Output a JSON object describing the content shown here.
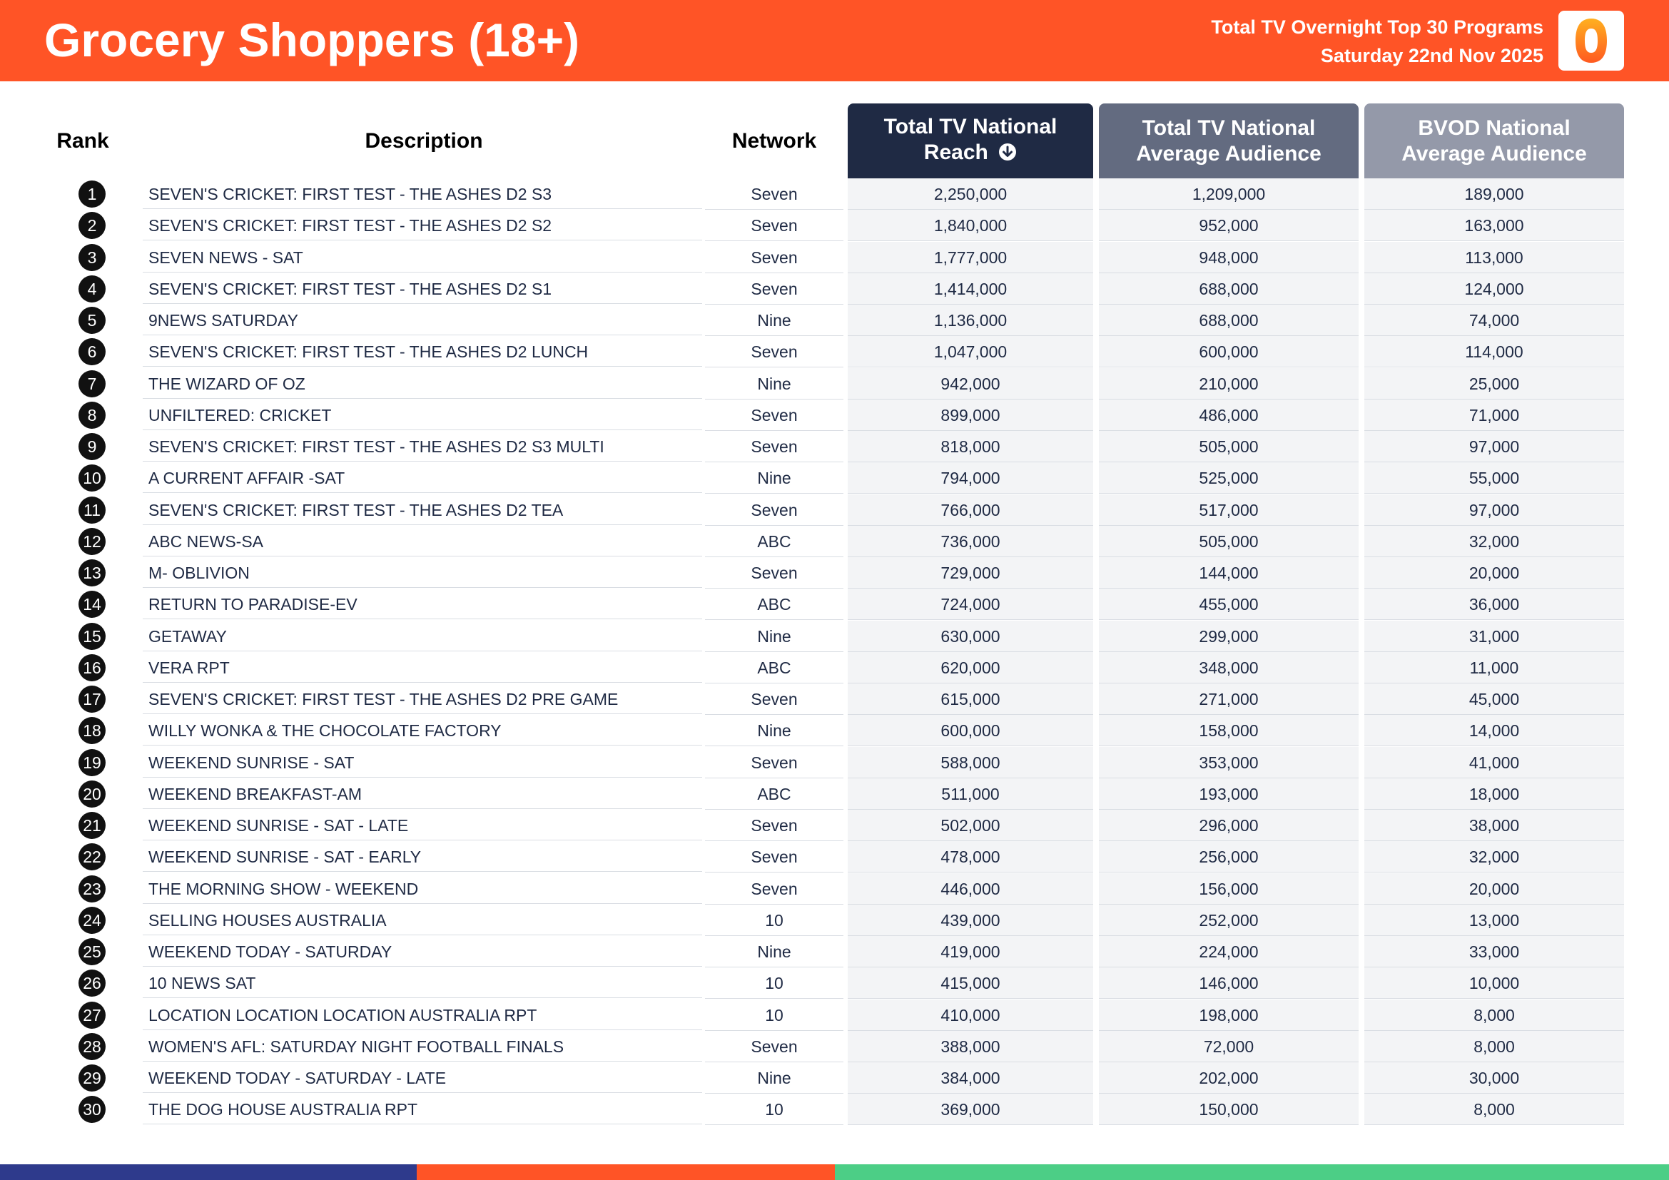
{
  "header": {
    "title": "Grocery Shoppers (18+)",
    "subtitle_line1": "Total TV Overnight Top 30 Programs",
    "subtitle_line2": "Saturday 22nd Nov 2025",
    "logo_icon": "oztam-logo-icon"
  },
  "columns": {
    "rank": "Rank",
    "description": "Description",
    "network": "Network",
    "reach_line1": "Total TV National",
    "reach_line2": "Reach",
    "avg_line1": "Total TV National",
    "avg_line2": "Average Audience",
    "bvod_line1": "BVOD National",
    "bvod_line2": "Average Audience"
  },
  "colors": {
    "header": "#ff5426",
    "reach_header": "#1f2a44",
    "avg_header": "#636b80",
    "bvod_header": "#9499a9",
    "footer": [
      "#2e3a8c",
      "#ff5426",
      "#4cce86"
    ]
  },
  "rows": [
    {
      "rank": "1",
      "description": "SEVEN'S CRICKET: FIRST TEST - THE ASHES D2 S3",
      "network": "Seven",
      "reach": "2,250,000",
      "avg": "1,209,000",
      "bvod": "189,000"
    },
    {
      "rank": "2",
      "description": "SEVEN'S CRICKET: FIRST TEST - THE ASHES D2 S2",
      "network": "Seven",
      "reach": "1,840,000",
      "avg": "952,000",
      "bvod": "163,000"
    },
    {
      "rank": "3",
      "description": "SEVEN NEWS - SAT",
      "network": "Seven",
      "reach": "1,777,000",
      "avg": "948,000",
      "bvod": "113,000"
    },
    {
      "rank": "4",
      "description": "SEVEN'S CRICKET: FIRST TEST - THE ASHES D2 S1",
      "network": "Seven",
      "reach": "1,414,000",
      "avg": "688,000",
      "bvod": "124,000"
    },
    {
      "rank": "5",
      "description": "9NEWS SATURDAY",
      "network": "Nine",
      "reach": "1,136,000",
      "avg": "688,000",
      "bvod": "74,000"
    },
    {
      "rank": "6",
      "description": "SEVEN'S CRICKET: FIRST TEST - THE ASHES D2 LUNCH",
      "network": "Seven",
      "reach": "1,047,000",
      "avg": "600,000",
      "bvod": "114,000"
    },
    {
      "rank": "7",
      "description": "THE WIZARD OF OZ",
      "network": "Nine",
      "reach": "942,000",
      "avg": "210,000",
      "bvod": "25,000"
    },
    {
      "rank": "8",
      "description": "UNFILTERED: CRICKET",
      "network": "Seven",
      "reach": "899,000",
      "avg": "486,000",
      "bvod": "71,000"
    },
    {
      "rank": "9",
      "description": "SEVEN'S CRICKET: FIRST TEST - THE ASHES D2 S3 MULTI",
      "network": "Seven",
      "reach": "818,000",
      "avg": "505,000",
      "bvod": "97,000"
    },
    {
      "rank": "10",
      "description": "A CURRENT AFFAIR -SAT",
      "network": "Nine",
      "reach": "794,000",
      "avg": "525,000",
      "bvod": "55,000"
    },
    {
      "rank": "11",
      "description": "SEVEN'S CRICKET: FIRST TEST - THE ASHES D2 TEA",
      "network": "Seven",
      "reach": "766,000",
      "avg": "517,000",
      "bvod": "97,000"
    },
    {
      "rank": "12",
      "description": "ABC NEWS-SA",
      "network": "ABC",
      "reach": "736,000",
      "avg": "505,000",
      "bvod": "32,000"
    },
    {
      "rank": "13",
      "description": "M- OBLIVION",
      "network": "Seven",
      "reach": "729,000",
      "avg": "144,000",
      "bvod": "20,000"
    },
    {
      "rank": "14",
      "description": "RETURN TO PARADISE-EV",
      "network": "ABC",
      "reach": "724,000",
      "avg": "455,000",
      "bvod": "36,000"
    },
    {
      "rank": "15",
      "description": "GETAWAY",
      "network": "Nine",
      "reach": "630,000",
      "avg": "299,000",
      "bvod": "31,000"
    },
    {
      "rank": "16",
      "description": "VERA RPT",
      "network": "ABC",
      "reach": "620,000",
      "avg": "348,000",
      "bvod": "11,000"
    },
    {
      "rank": "17",
      "description": "SEVEN'S CRICKET: FIRST TEST - THE ASHES D2 PRE GAME",
      "network": "Seven",
      "reach": "615,000",
      "avg": "271,000",
      "bvod": "45,000"
    },
    {
      "rank": "18",
      "description": "WILLY WONKA & THE CHOCOLATE FACTORY",
      "network": "Nine",
      "reach": "600,000",
      "avg": "158,000",
      "bvod": "14,000"
    },
    {
      "rank": "19",
      "description": "WEEKEND SUNRISE - SAT",
      "network": "Seven",
      "reach": "588,000",
      "avg": "353,000",
      "bvod": "41,000"
    },
    {
      "rank": "20",
      "description": "WEEKEND BREAKFAST-AM",
      "network": "ABC",
      "reach": "511,000",
      "avg": "193,000",
      "bvod": "18,000"
    },
    {
      "rank": "21",
      "description": "WEEKEND SUNRISE - SAT - LATE",
      "network": "Seven",
      "reach": "502,000",
      "avg": "296,000",
      "bvod": "38,000"
    },
    {
      "rank": "22",
      "description": "WEEKEND SUNRISE - SAT - EARLY",
      "network": "Seven",
      "reach": "478,000",
      "avg": "256,000",
      "bvod": "32,000"
    },
    {
      "rank": "23",
      "description": "THE MORNING SHOW - WEEKEND",
      "network": "Seven",
      "reach": "446,000",
      "avg": "156,000",
      "bvod": "20,000"
    },
    {
      "rank": "24",
      "description": "SELLING HOUSES AUSTRALIA",
      "network": "10",
      "reach": "439,000",
      "avg": "252,000",
      "bvod": "13,000"
    },
    {
      "rank": "25",
      "description": "WEEKEND TODAY - SATURDAY",
      "network": "Nine",
      "reach": "419,000",
      "avg": "224,000",
      "bvod": "33,000"
    },
    {
      "rank": "26",
      "description": "10 NEWS SAT",
      "network": "10",
      "reach": "415,000",
      "avg": "146,000",
      "bvod": "10,000"
    },
    {
      "rank": "27",
      "description": "LOCATION LOCATION LOCATION AUSTRALIA RPT",
      "network": "10",
      "reach": "410,000",
      "avg": "198,000",
      "bvod": "8,000"
    },
    {
      "rank": "28",
      "description": "WOMEN'S AFL: SATURDAY NIGHT FOOTBALL FINALS",
      "network": "Seven",
      "reach": "388,000",
      "avg": "72,000",
      "bvod": "8,000"
    },
    {
      "rank": "29",
      "description": "WEEKEND TODAY - SATURDAY - LATE",
      "network": "Nine",
      "reach": "384,000",
      "avg": "202,000",
      "bvod": "30,000"
    },
    {
      "rank": "30",
      "description": "THE DOG HOUSE AUSTRALIA RPT",
      "network": "10",
      "reach": "369,000",
      "avg": "150,000",
      "bvod": "8,000"
    }
  ]
}
